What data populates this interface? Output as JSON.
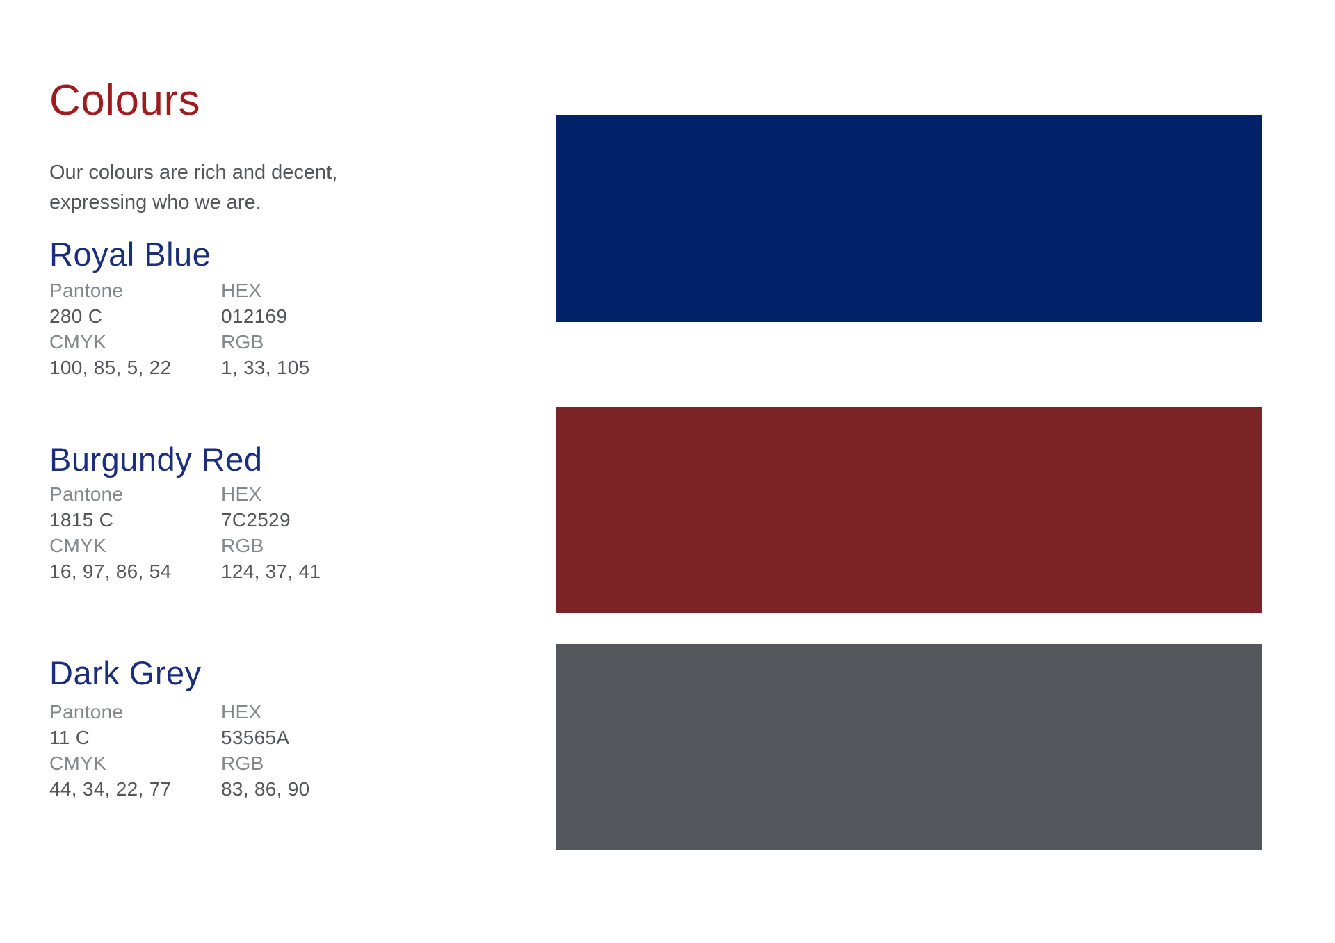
{
  "page": {
    "title": "Colours",
    "intro_line1": "Our colours are rich and decent,",
    "intro_line2": "expressing who we are."
  },
  "theme": {
    "title_color": "#9E1B1E",
    "heading_color": "#1A2E7C",
    "label_color": "#85888B",
    "value_color": "#54565A"
  },
  "labels": {
    "pantone": "Pantone",
    "hex": "HEX",
    "cmyk": "CMYK",
    "rgb": "RGB"
  },
  "colours": [
    {
      "name": "Royal Blue",
      "pantone": "280 C",
      "hex": "012169",
      "cmyk": "100, 85, 5, 22",
      "rgb": "1, 33, 105",
      "swatch_hex": "#012169"
    },
    {
      "name": "Burgundy Red",
      "pantone": "1815 C",
      "hex": "7C2529",
      "cmyk": "16, 97, 86, 54",
      "rgb": "124, 37, 41",
      "swatch_hex": "#7C2529"
    },
    {
      "name": "Dark Grey",
      "pantone": "11 C",
      "hex": "53565A",
      "cmyk": "44, 34, 22, 77",
      "rgb": "83, 86, 90",
      "swatch_hex": "#53565A"
    }
  ]
}
